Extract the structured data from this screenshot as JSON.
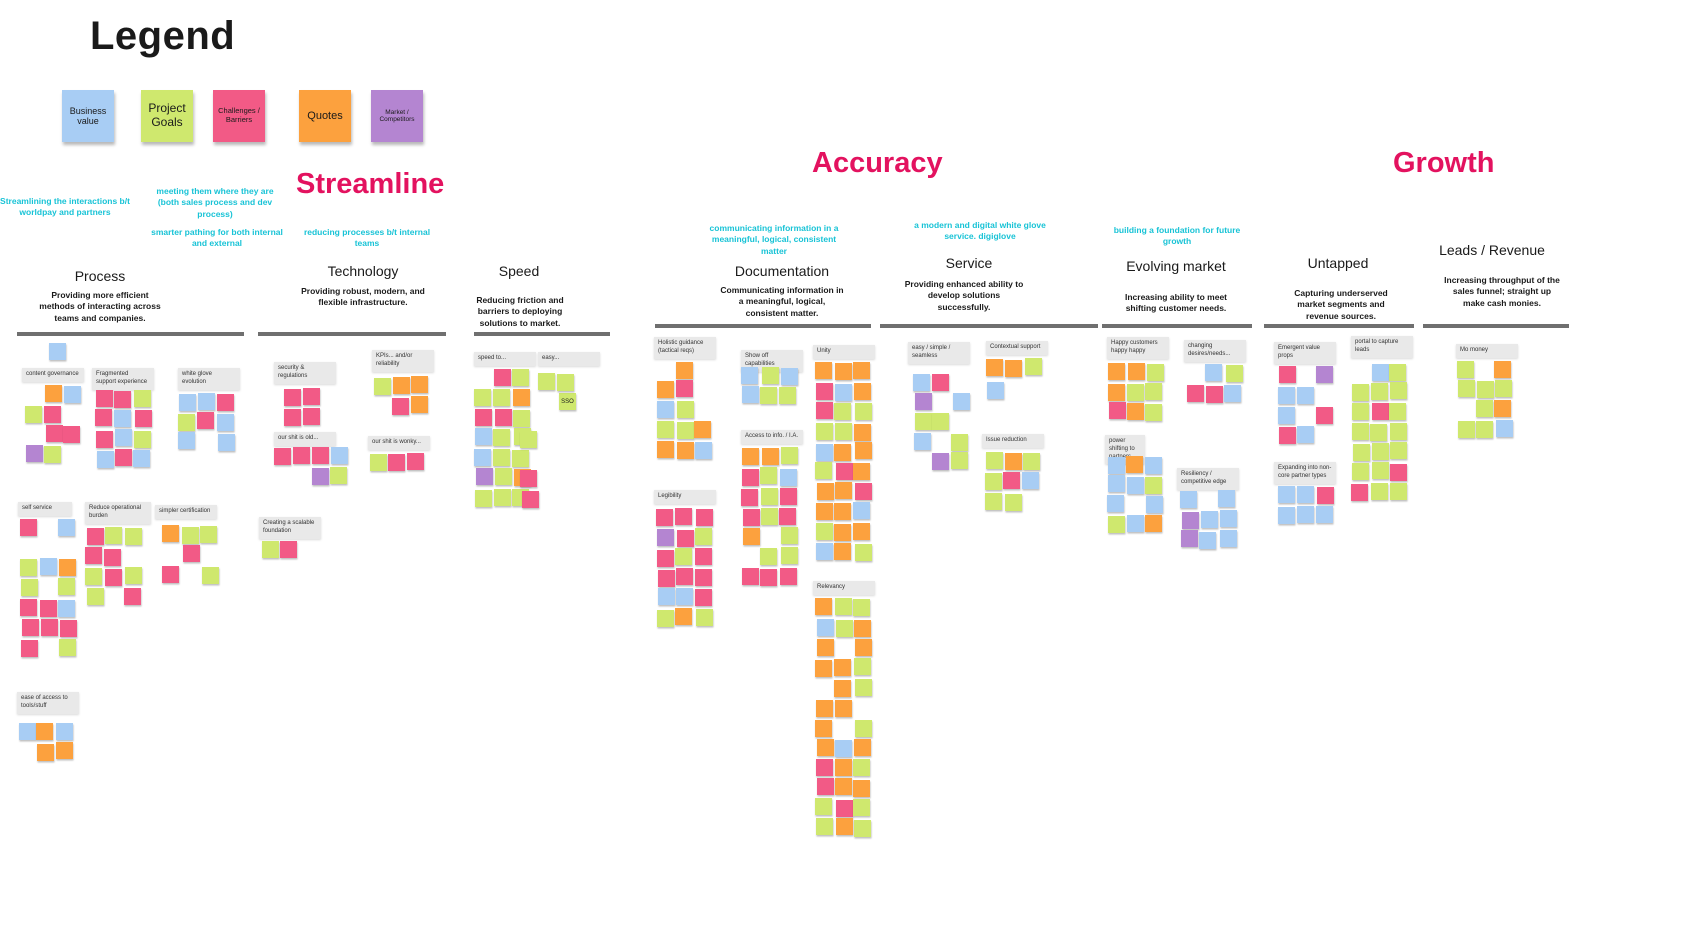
{
  "legend": {
    "title": "Legend",
    "items": [
      {
        "label": "Business value",
        "color": "#a8cdf4"
      },
      {
        "label": "Project Goals",
        "color": "#cfe86e"
      },
      {
        "label": "Challenges / Barriers",
        "color": "#f25a86"
      },
      {
        "label": "Quotes",
        "color": "#fca13e"
      },
      {
        "label": "Market / Competitors",
        "color": "#b485d1"
      }
    ]
  },
  "themes": {
    "streamline": "Streamline",
    "accuracy": "Accuracy",
    "growth": "Growth"
  },
  "notes": {
    "n1": "Streamlining the interactions b/t worldpay and partners",
    "n2": "meeting them where they are (both sales process and dev process)",
    "n3": "smarter pathing for both internal and external",
    "n4": "reducing processes b/t internal teams",
    "n5": "communicating information in a meaningful, logical, consistent matter",
    "n6": "a modern and digital white glove service. digiglove",
    "n7": "building a foundation for future growth"
  },
  "categories": {
    "process": {
      "title": "Process",
      "desc": "Providing more efficient methods of interacting across teams and companies."
    },
    "technology": {
      "title": "Technology",
      "desc": "Providing robust, modern, and flexible infrastructure."
    },
    "speed": {
      "title": "Speed",
      "desc": "Reducing friction and barriers to deploying solutions to market."
    },
    "documentation": {
      "title": "Documentation",
      "desc": "Communicating information in a meaningful, logical, consistent matter."
    },
    "service": {
      "title": "Service",
      "desc": "Providing enhanced ability to develop solutions successfully."
    },
    "evolving": {
      "title": "Evolving market",
      "desc": "Increasing ability to meet shifting customer needs."
    },
    "untapped": {
      "title": "Untapped",
      "desc": "Capturing underserved market segments and revenue sources."
    },
    "leads": {
      "title": "Leads / Revenue",
      "desc": "Increasing throughput of the sales funnel; straight up make cash monies."
    }
  },
  "labels": {
    "content_governance": "content governance",
    "fragmented": "Fragmented support experience",
    "white_glove": "white glove evolution",
    "self_service": "self service",
    "reduce_burden": "Reduce operational burden",
    "simpler_cert": "simpler certification",
    "ease_access": "ease of access to tools/stuff",
    "security": "security & regulations",
    "kpis": "KPIs... and/or reliability",
    "shit_old": "our shit is old...",
    "shit_wonky": "our shit is wonky...",
    "scalable": "Creating a scalable foundation",
    "speed_to": "speed to...",
    "easy": "easy...",
    "holistic": "Holistic guidance (tactical reqs)",
    "show_off": "Show off capabilities",
    "unity": "Unity",
    "access_info": "Access to info. / I.A.",
    "legibility": "Legibility",
    "relevancy": "Relevancy",
    "easy_simple": "easy / simple / seamless",
    "contextual": "Contextual support",
    "issue_reduction": "Issue reduction",
    "happy_customers": "Happy customers happy happy",
    "changing_desires": "changing desires/needs...",
    "power_shifting": "power shifting to partners",
    "resiliency": "Resiliency / competitive edge",
    "emergent": "Emergent value props",
    "portal": "portal to capture leads",
    "expanding": "Expanding into non-core partner types",
    "mo_money": "Mo money"
  },
  "sticky_text": {
    "sso": "SSO"
  }
}
